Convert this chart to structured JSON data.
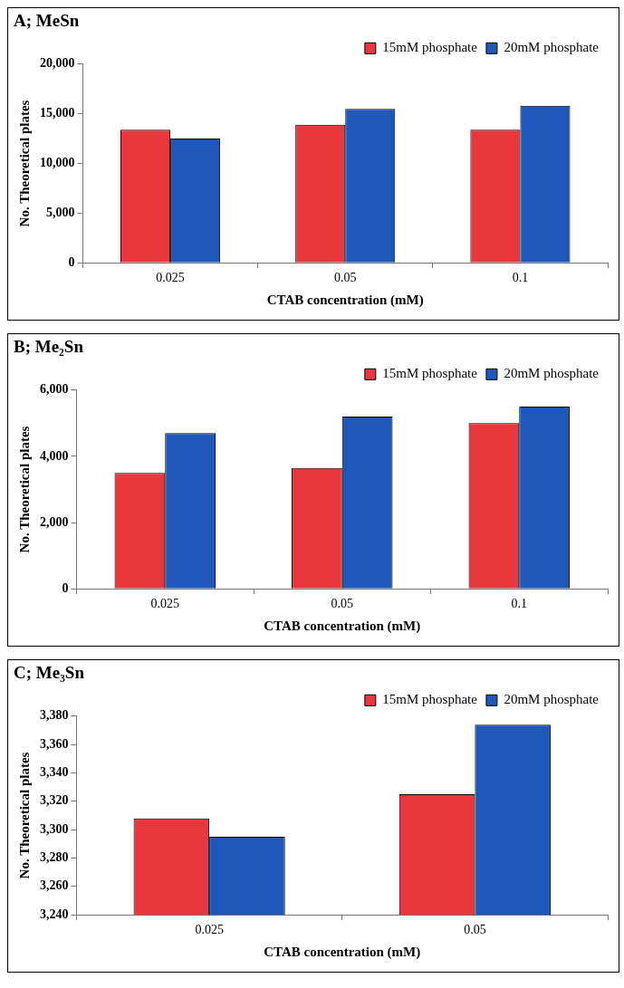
{
  "chart_data": [
    {
      "type": "bar",
      "title": "A; MeSn",
      "xlabel": "CTAB concentration (mM)",
      "ylabel": "No. Theoretical plates",
      "categories": [
        "0.025",
        "0.05",
        "0.1"
      ],
      "series": [
        {
          "name": "15mM phosphate",
          "color": "#e8383d",
          "values": [
            13400,
            13900,
            13400
          ]
        },
        {
          "name": "20mM phosphate",
          "color": "#1f57b8",
          "values": [
            12500,
            15500,
            15800
          ]
        }
      ],
      "ylim": [
        0,
        20000
      ],
      "yticks": [
        0,
        {
          "value": 5000,
          "label": "5,000"
        },
        {
          "value": 10000,
          "label": "10,000"
        },
        {
          "value": 15000,
          "label": "15,000"
        },
        {
          "value": 20000,
          "label": "20,000"
        }
      ],
      "grid": false,
      "legend": "top right"
    },
    {
      "type": "bar",
      "title": "B; Me₂Sn",
      "xlabel": "CTAB concentration (mM)",
      "ylabel": "No. Theoretical plates",
      "categories": [
        "0.025",
        "0.05",
        "0.1"
      ],
      "series": [
        {
          "name": "15mM phosphate",
          "color": "#e8383d",
          "values": [
            3500,
            3650,
            5000
          ]
        },
        {
          "name": "20mM phosphate",
          "color": "#1f57b8",
          "values": [
            4700,
            5200,
            5500
          ]
        }
      ],
      "ylim": [
        0,
        6000
      ],
      "yticks": [
        0,
        {
          "value": 2000,
          "label": "2,000"
        },
        {
          "value": 4000,
          "label": "4,000"
        },
        {
          "value": 6000,
          "label": "6,000"
        }
      ],
      "grid": false,
      "legend": "top right"
    },
    {
      "type": "bar",
      "title": "C; Me₃Sn",
      "xlabel": "CTAB concentration (mM)",
      "ylabel": "No. Theoretical plates",
      "categories": [
        "0.025",
        "0.05"
      ],
      "series": [
        {
          "name": "15mM phosphate",
          "color": "#e8383d",
          "values": [
            3308,
            3325
          ]
        },
        {
          "name": "20mM phosphate",
          "color": "#1f57b8",
          "values": [
            3295,
            3374
          ]
        }
      ],
      "ylim": [
        3240,
        3380
      ],
      "yticks": [
        {
          "value": 3240,
          "label": "3,240"
        },
        {
          "value": 3260,
          "label": "3,260"
        },
        {
          "value": 3280,
          "label": "3,280"
        },
        {
          "value": 3300,
          "label": "3,300"
        },
        {
          "value": 3320,
          "label": "3,320"
        },
        {
          "value": 3340,
          "label": "3,340"
        },
        {
          "value": 3360,
          "label": "3,360"
        },
        {
          "value": 3380,
          "label": "3,380"
        }
      ],
      "grid": false,
      "legend": "top right"
    }
  ]
}
